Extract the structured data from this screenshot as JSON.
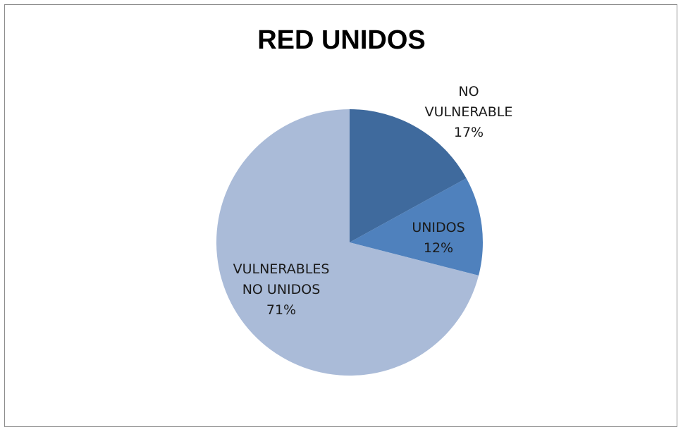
{
  "chart_data": {
    "type": "pie",
    "title": "RED UNIDOS",
    "start_angle_deg": 0,
    "direction": "clockwise",
    "slices": [
      {
        "label_lines": [
          "NO",
          "VULNERABLE"
        ],
        "value": 17,
        "percent_label": "17%",
        "color": "#3F6A9D"
      },
      {
        "label_lines": [
          "UNIDOS"
        ],
        "value": 12,
        "percent_label": "12%",
        "color": "#4F81BD"
      },
      {
        "label_lines": [
          "VULNERABLES",
          "NO UNIDOS"
        ],
        "value": 71,
        "percent_label": "71%",
        "color": "#AABBD8"
      }
    ]
  }
}
